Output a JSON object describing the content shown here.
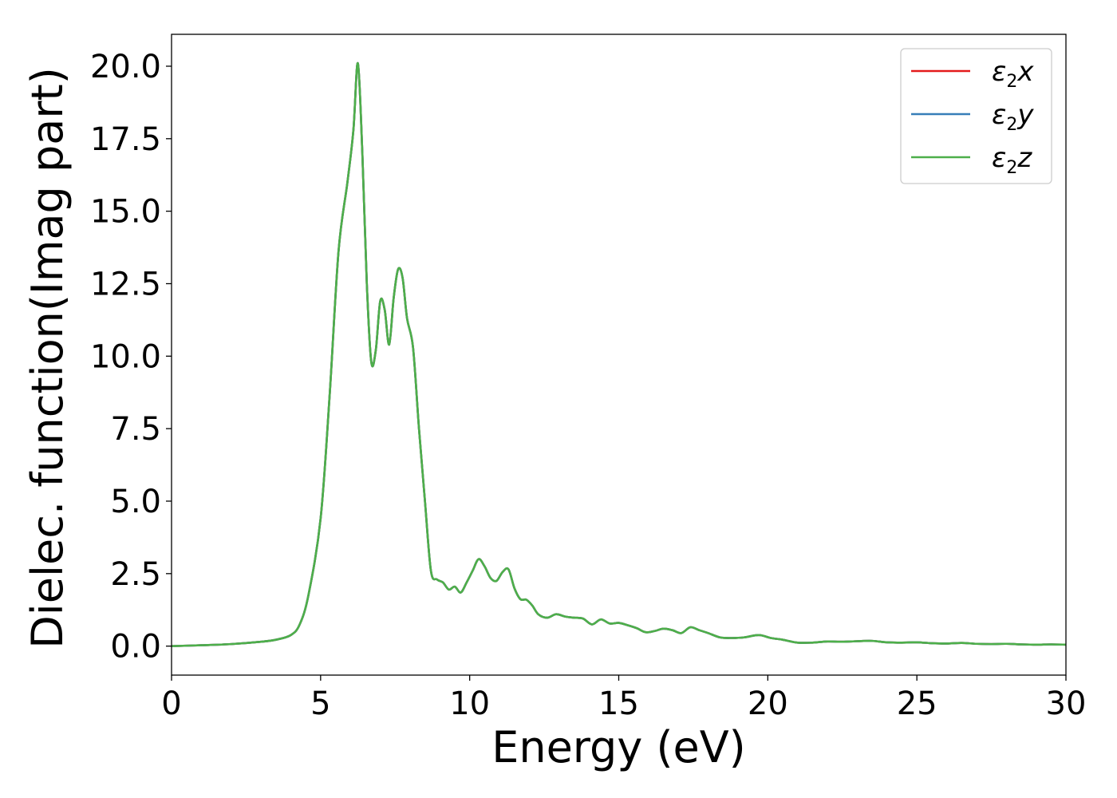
{
  "chart_data": {
    "type": "line",
    "title": "",
    "xlabel": "Energy (eV)",
    "ylabel": "Dielec. function(Imag part)",
    "xlim": [
      0,
      30
    ],
    "ylim": [
      -1.0,
      21.1
    ],
    "xticks": [
      0,
      5,
      10,
      15,
      20,
      25,
      30
    ],
    "xtick_labels": [
      "0",
      "5",
      "10",
      "15",
      "20",
      "25",
      "30"
    ],
    "yticks": [
      0.0,
      2.5,
      5.0,
      7.5,
      10.0,
      12.5,
      15.0,
      17.5,
      20.0
    ],
    "ytick_labels": [
      "0.0",
      "2.5",
      "5.0",
      "7.5",
      "10.0",
      "12.5",
      "15.0",
      "17.5",
      "20.0"
    ],
    "grid": false,
    "legend_position": "top-right",
    "x": [
      0,
      1,
      2,
      3,
      3.5,
      4,
      4.3,
      4.6,
      5,
      5.3,
      5.6,
      5.9,
      6.1,
      6.25,
      6.4,
      6.55,
      6.7,
      6.85,
      7.0,
      7.15,
      7.3,
      7.45,
      7.6,
      7.75,
      7.9,
      8.1,
      8.3,
      8.5,
      8.7,
      8.9,
      9.1,
      9.3,
      9.5,
      9.7,
      9.9,
      10.1,
      10.3,
      10.5,
      10.7,
      10.9,
      11.1,
      11.3,
      11.5,
      11.7,
      11.9,
      12.1,
      12.3,
      12.6,
      12.9,
      13.2,
      13.5,
      13.8,
      14.1,
      14.4,
      14.7,
      15.0,
      15.3,
      15.6,
      15.9,
      16.2,
      16.5,
      16.8,
      17.1,
      17.4,
      17.7,
      18.0,
      18.4,
      18.8,
      19.2,
      19.7,
      20.1,
      20.5,
      21.0,
      21.5,
      22.0,
      22.5,
      23.0,
      23.5,
      24.0,
      24.5,
      25.0,
      25.5,
      26.0,
      26.5,
      27.0,
      27.5,
      28.0,
      28.5,
      29.0,
      29.5,
      30.0
    ],
    "series": [
      {
        "name": "ε2x",
        "color": "#e41a1c",
        "values": [
          0.0,
          0.03,
          0.07,
          0.15,
          0.22,
          0.38,
          0.75,
          1.8,
          4.4,
          8.6,
          13.6,
          16.0,
          17.8,
          20.1,
          17.0,
          12.5,
          9.8,
          10.2,
          11.9,
          11.6,
          10.4,
          12.0,
          13.0,
          12.7,
          11.3,
          10.3,
          7.5,
          5.0,
          2.6,
          2.3,
          2.2,
          1.95,
          2.05,
          1.85,
          2.2,
          2.6,
          3.0,
          2.75,
          2.35,
          2.25,
          2.55,
          2.65,
          2.0,
          1.62,
          1.6,
          1.4,
          1.1,
          0.98,
          1.1,
          1.02,
          0.98,
          0.95,
          0.75,
          0.92,
          0.78,
          0.8,
          0.72,
          0.62,
          0.48,
          0.52,
          0.6,
          0.55,
          0.45,
          0.65,
          0.55,
          0.45,
          0.3,
          0.28,
          0.3,
          0.38,
          0.28,
          0.22,
          0.12,
          0.12,
          0.16,
          0.15,
          0.17,
          0.18,
          0.13,
          0.12,
          0.13,
          0.1,
          0.09,
          0.11,
          0.08,
          0.07,
          0.08,
          0.06,
          0.05,
          0.06,
          0.05
        ]
      },
      {
        "name": "ε2y",
        "color": "#377eb8",
        "values": [
          0.0,
          0.03,
          0.07,
          0.15,
          0.22,
          0.38,
          0.75,
          1.8,
          4.4,
          8.6,
          13.6,
          16.0,
          17.8,
          20.1,
          17.0,
          12.5,
          9.8,
          10.2,
          11.9,
          11.6,
          10.4,
          12.0,
          13.0,
          12.7,
          11.3,
          10.3,
          7.5,
          5.0,
          2.6,
          2.3,
          2.2,
          1.95,
          2.05,
          1.85,
          2.2,
          2.6,
          3.0,
          2.75,
          2.35,
          2.25,
          2.55,
          2.65,
          2.0,
          1.62,
          1.6,
          1.4,
          1.1,
          0.98,
          1.1,
          1.02,
          0.98,
          0.95,
          0.75,
          0.92,
          0.78,
          0.8,
          0.72,
          0.62,
          0.48,
          0.52,
          0.6,
          0.55,
          0.45,
          0.65,
          0.55,
          0.45,
          0.3,
          0.28,
          0.3,
          0.38,
          0.28,
          0.22,
          0.12,
          0.12,
          0.16,
          0.15,
          0.17,
          0.18,
          0.13,
          0.12,
          0.13,
          0.1,
          0.09,
          0.11,
          0.08,
          0.07,
          0.08,
          0.06,
          0.05,
          0.06,
          0.05
        ]
      },
      {
        "name": "ε2z",
        "color": "#4daf4a",
        "values": [
          0.0,
          0.03,
          0.07,
          0.15,
          0.22,
          0.38,
          0.75,
          1.8,
          4.4,
          8.6,
          13.6,
          16.0,
          17.8,
          20.1,
          17.0,
          12.5,
          9.8,
          10.2,
          11.9,
          11.6,
          10.4,
          12.0,
          13.0,
          12.7,
          11.3,
          10.3,
          7.5,
          5.0,
          2.6,
          2.3,
          2.2,
          1.95,
          2.05,
          1.85,
          2.2,
          2.6,
          3.0,
          2.75,
          2.35,
          2.25,
          2.55,
          2.65,
          2.0,
          1.62,
          1.6,
          1.4,
          1.1,
          0.98,
          1.1,
          1.02,
          0.98,
          0.95,
          0.75,
          0.92,
          0.78,
          0.8,
          0.72,
          0.62,
          0.48,
          0.52,
          0.6,
          0.55,
          0.45,
          0.65,
          0.55,
          0.45,
          0.3,
          0.28,
          0.3,
          0.38,
          0.28,
          0.22,
          0.12,
          0.12,
          0.16,
          0.15,
          0.17,
          0.18,
          0.13,
          0.12,
          0.13,
          0.1,
          0.09,
          0.11,
          0.08,
          0.07,
          0.08,
          0.06,
          0.05,
          0.06,
          0.05
        ]
      }
    ],
    "legend": [
      {
        "symbol": "ε",
        "subscript": "2",
        "axis": "x"
      },
      {
        "symbol": "ε",
        "subscript": "2",
        "axis": "y"
      },
      {
        "symbol": "ε",
        "subscript": "2",
        "axis": "z"
      }
    ]
  }
}
